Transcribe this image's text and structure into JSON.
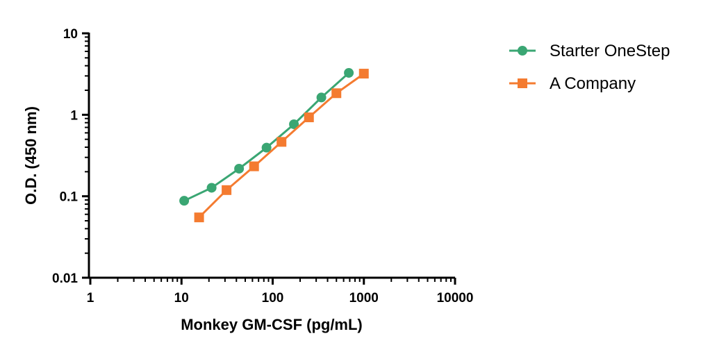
{
  "chart_data": {
    "type": "line",
    "xlabel": "Monkey GM-CSF (pg/mL)",
    "ylabel": "O.D. (450 nm)",
    "x_scale": "log",
    "y_scale": "log",
    "xlim": [
      1,
      10000
    ],
    "ylim": [
      0.01,
      10
    ],
    "x_ticks": [
      "1",
      "10",
      "100",
      "1000",
      "10000"
    ],
    "y_ticks": [
      "0.01",
      "0.1",
      "1",
      "10"
    ],
    "grid": false,
    "legend_position": "right",
    "series": [
      {
        "name": "Starter OneStep",
        "color": "#3aa673",
        "marker": "circle",
        "x": [
          10.7,
          21.4,
          42.8,
          85.6,
          171,
          342,
          684
        ],
        "y": [
          0.088,
          0.127,
          0.218,
          0.395,
          0.765,
          1.63,
          3.27
        ]
      },
      {
        "name": "A Company",
        "color": "#f47b30",
        "marker": "square",
        "x": [
          15.6,
          31.2,
          62.5,
          125,
          250,
          500,
          1000
        ],
        "y": [
          0.055,
          0.119,
          0.233,
          0.465,
          0.93,
          1.84,
          3.2
        ]
      }
    ]
  }
}
